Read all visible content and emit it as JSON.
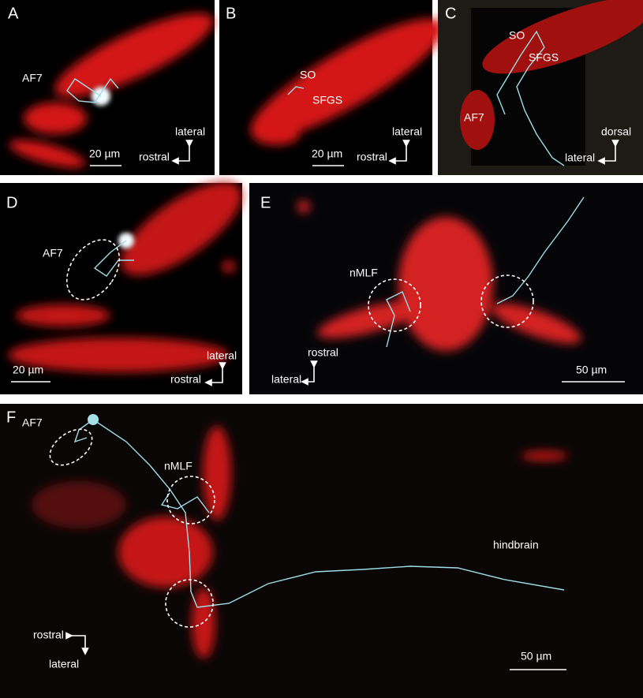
{
  "panels": [
    {
      "letter": "A",
      "labels": [
        "AF7"
      ],
      "scale_bar": "20 µm",
      "orientation": [
        "lateral",
        "rostral"
      ]
    },
    {
      "letter": "B",
      "labels": [
        "SO",
        "SFGS"
      ],
      "scale_bar": "20 µm",
      "orientation": [
        "lateral",
        "rostral"
      ]
    },
    {
      "letter": "C",
      "labels": [
        "SO",
        "SFGS",
        "AF7"
      ],
      "orientation": [
        "dorsal",
        "lateral"
      ]
    },
    {
      "letter": "D",
      "labels": [
        "AF7"
      ],
      "scale_bar": "20 µm",
      "orientation": [
        "lateral",
        "rostral"
      ]
    },
    {
      "letter": "E",
      "labels": [
        "nMLF"
      ],
      "scale_bar": "50 µm",
      "orientation": [
        "rostral",
        "lateral"
      ]
    },
    {
      "letter": "F",
      "labels": [
        "AF7",
        "nMLF",
        "hindbrain"
      ],
      "scale_bar": "50 µm",
      "orientation": [
        "rostral",
        "lateral"
      ]
    }
  ]
}
